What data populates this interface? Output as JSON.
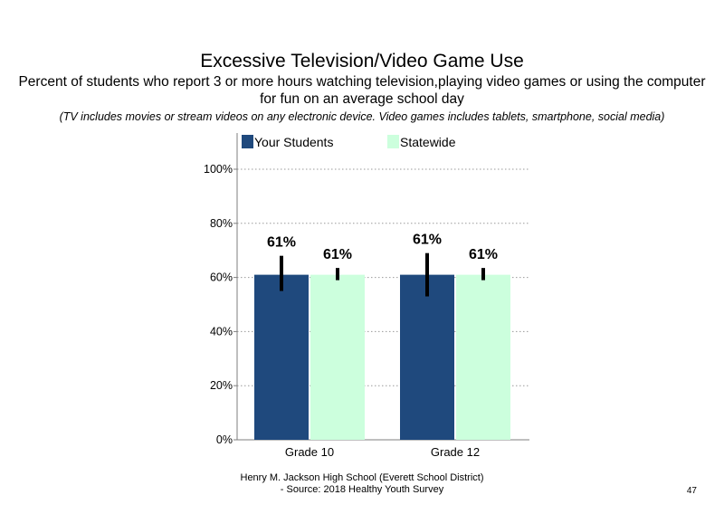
{
  "chart_data": {
    "type": "bar",
    "title": "Excessive Television/Video Game Use",
    "subtitle": "Percent of students  who report 3 or more hours watching television,playing video games or using the computer for fun on an average school day",
    "note": "(TV includes movies or stream videos on any electronic device. Video games includes tablets, smartphone, social media)",
    "categories": [
      "Grade 10",
      "Grade 12"
    ],
    "series": [
      {
        "name": "Your Students",
        "color": "#1f497d",
        "values": [
          61,
          61
        ],
        "error_low": [
          55,
          53
        ],
        "error_high": [
          68,
          69
        ],
        "labels": [
          "61%",
          "61%"
        ]
      },
      {
        "name": "Statewide",
        "color": "#ccffdd",
        "values": [
          61,
          61
        ],
        "error_low": [
          59,
          59
        ],
        "error_high": [
          63.5,
          63.5
        ],
        "labels": [
          "61%",
          "61%"
        ]
      }
    ],
    "ylim": [
      0,
      100
    ],
    "yticks": [
      0,
      20,
      40,
      60,
      80,
      100
    ],
    "ytick_labels": [
      "0%",
      "20%",
      "40%",
      "60%",
      "80%",
      "100%"
    ],
    "xlabel": "",
    "ylabel": "",
    "grid": true,
    "legend_position": "top-left"
  },
  "footer": {
    "line1": "Henry M.  Jackson High  School (Everett School District)",
    "line2": "- Source: 2018 Healthy  Youth Survey"
  },
  "page_number": "47"
}
